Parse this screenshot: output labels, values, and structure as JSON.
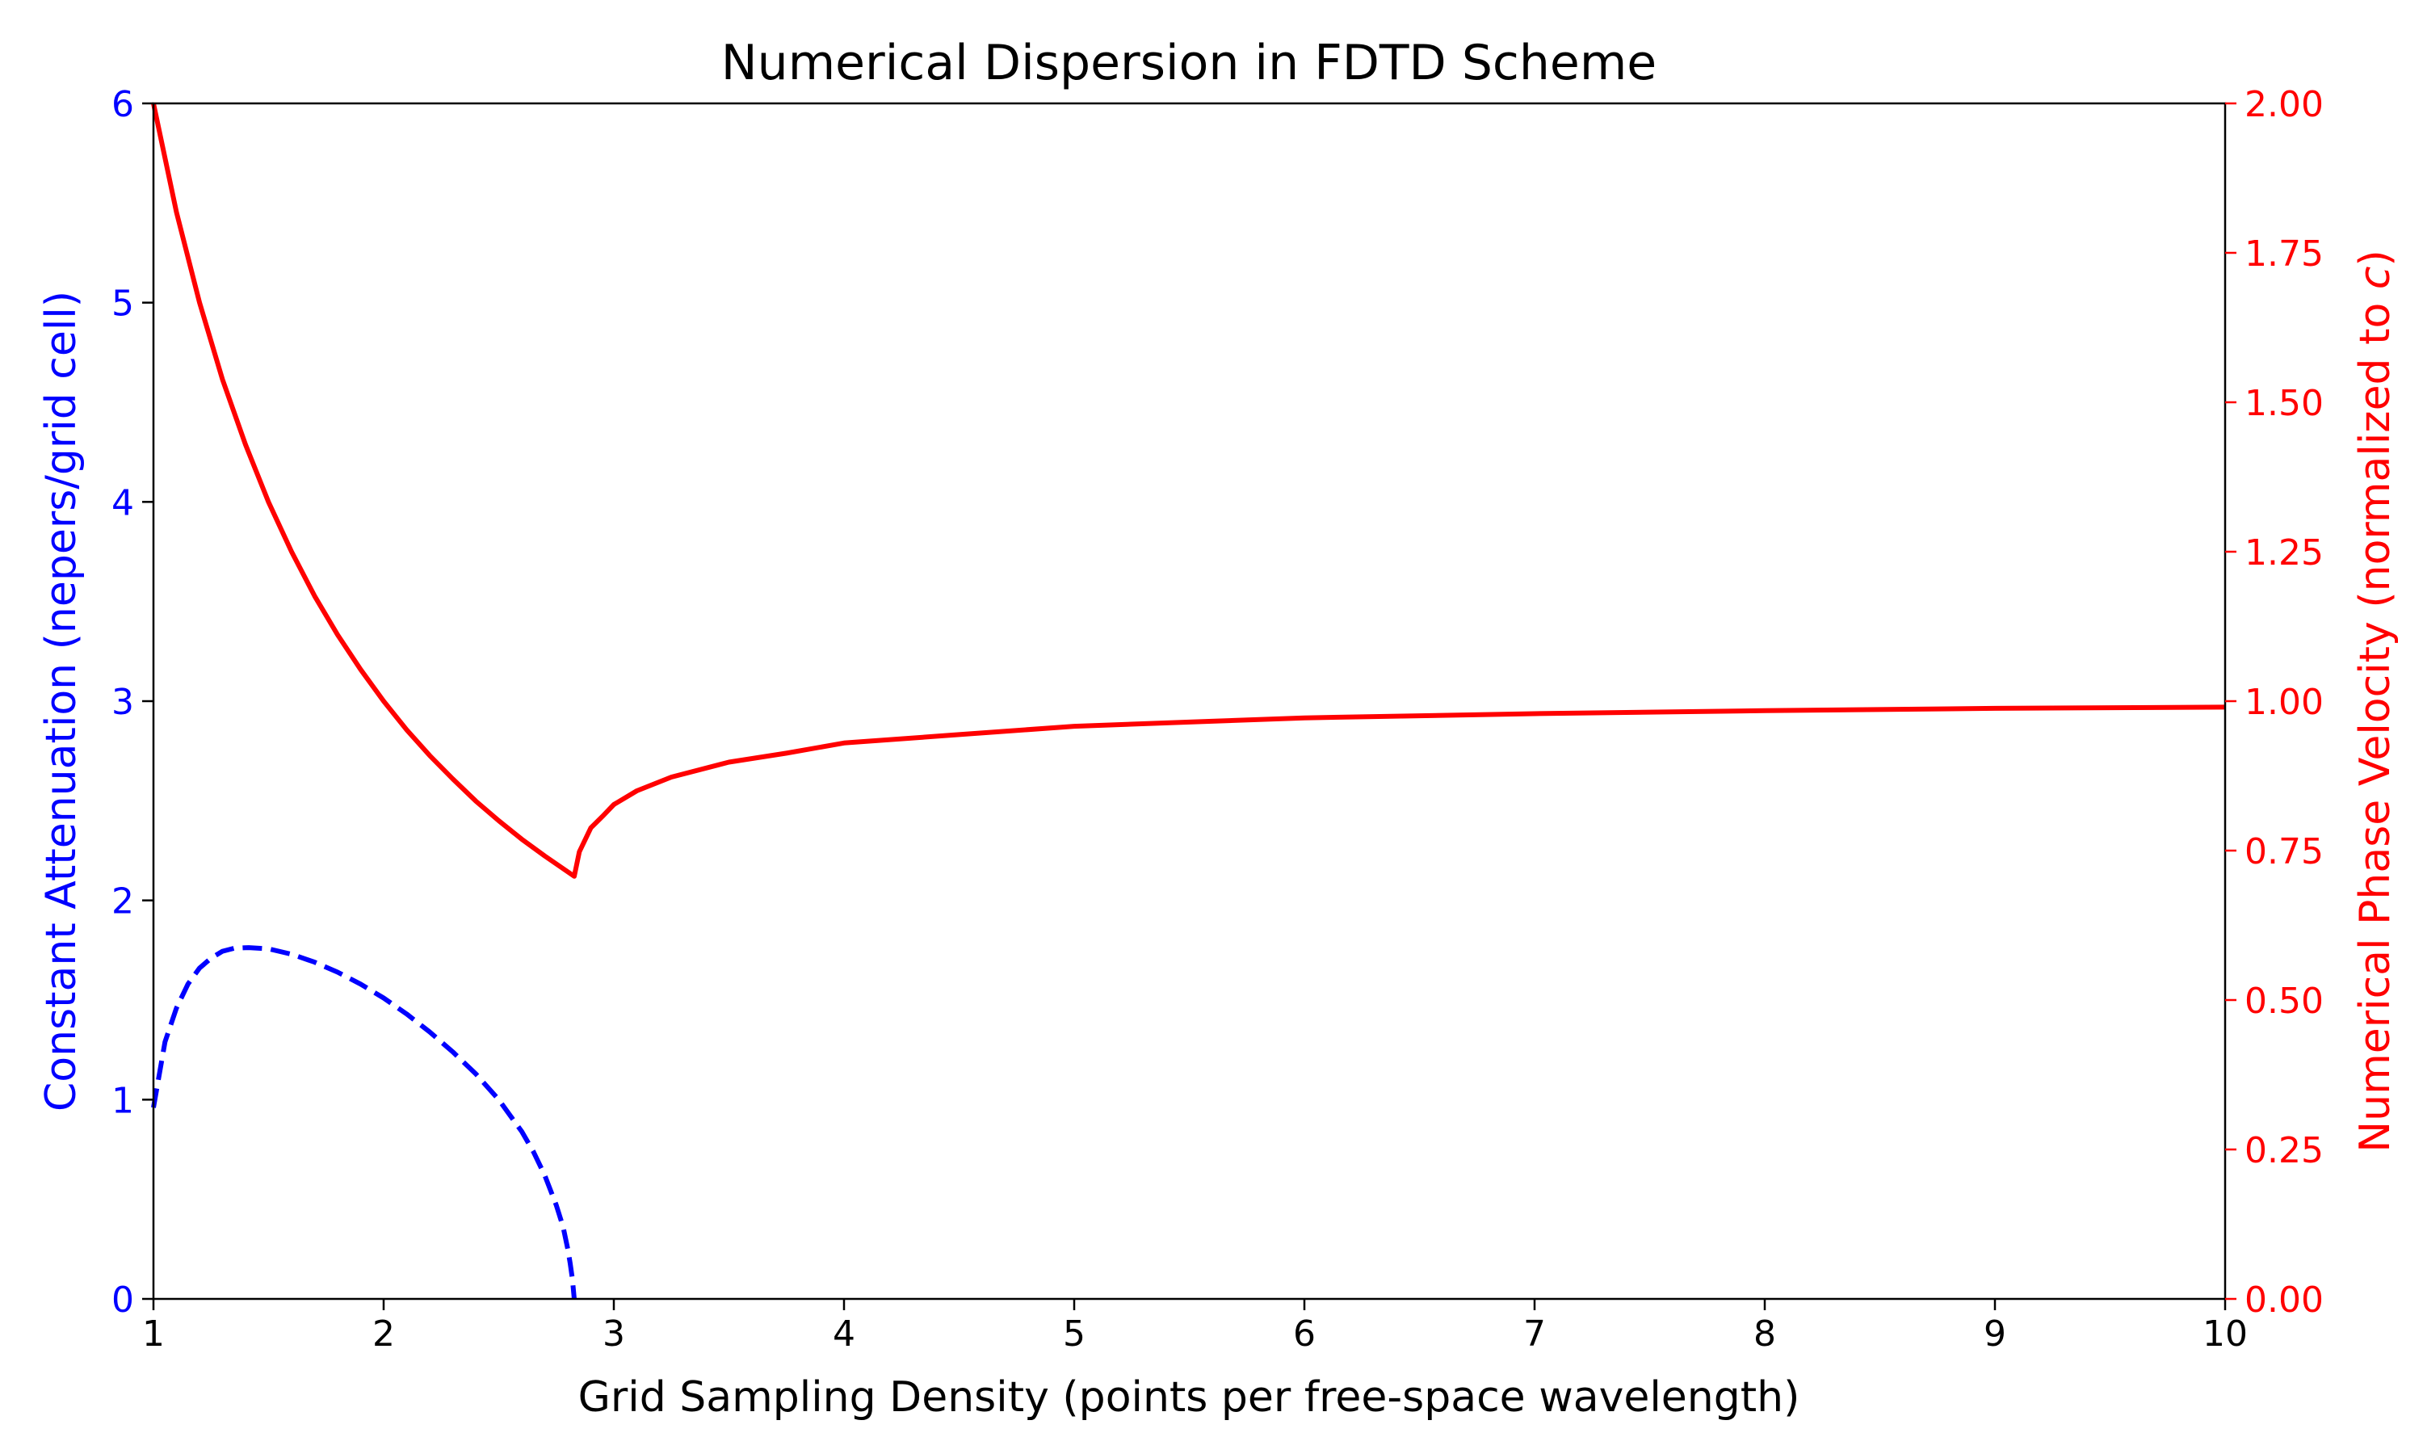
{
  "chart_data": {
    "type": "line",
    "title": "Numerical Dispersion in FDTD Scheme",
    "xlabel": "Grid Sampling Density (points per free-space wavelength)",
    "ylabel_left": "Constant Attenuation (nepers/grid cell)",
    "ylabel_right_prefix": "Numerical Phase Velocity (normalized to ",
    "ylabel_right_var": "c",
    "ylabel_right_suffix": ")",
    "xlim": [
      1,
      10
    ],
    "ylim_left": [
      0,
      6
    ],
    "ylim_right": [
      0,
      2
    ],
    "x_ticks": [
      1,
      2,
      3,
      4,
      5,
      6,
      7,
      8,
      9,
      10
    ],
    "x_tick_labels": [
      "1",
      "2",
      "3",
      "4",
      "5",
      "6",
      "7",
      "8",
      "9",
      "10"
    ],
    "y_left_ticks": [
      0,
      1,
      2,
      3,
      4,
      5,
      6
    ],
    "y_left_tick_labels": [
      "0",
      "1",
      "2",
      "3",
      "4",
      "5",
      "6"
    ],
    "y_right_ticks": [
      0,
      0.25,
      0.5,
      0.75,
      1.0,
      1.25,
      1.5,
      1.75,
      2.0
    ],
    "y_right_tick_labels": [
      "0.00",
      "0.25",
      "0.50",
      "0.75",
      "1.00",
      "1.25",
      "1.50",
      "1.75",
      "2.00"
    ],
    "grid": false,
    "series": [
      {
        "axis": "left",
        "style": "dashed",
        "color": "#0000ff",
        "x": [
          1.0,
          1.05,
          1.1,
          1.15,
          1.2,
          1.25,
          1.3,
          1.35,
          1.414,
          1.5,
          1.6,
          1.7,
          1.8,
          1.9,
          2.0,
          2.1,
          2.2,
          2.3,
          2.4,
          2.5,
          2.6,
          2.65,
          2.7,
          2.75,
          2.78,
          2.8,
          2.81,
          2.82,
          2.828
        ],
        "y": [
          0.96,
          1.29,
          1.46,
          1.58,
          1.66,
          1.71,
          1.745,
          1.76,
          1.763,
          1.757,
          1.73,
          1.69,
          1.64,
          1.58,
          1.51,
          1.43,
          1.34,
          1.24,
          1.13,
          1.0,
          0.84,
          0.74,
          0.62,
          0.47,
          0.36,
          0.25,
          0.18,
          0.1,
          0.0
        ]
      },
      {
        "axis": "right",
        "style": "solid",
        "color": "#ff0000",
        "x": [
          1.0,
          1.1,
          1.2,
          1.3,
          1.4,
          1.5,
          1.6,
          1.7,
          1.8,
          1.9,
          2.0,
          2.1,
          2.2,
          2.3,
          2.4,
          2.5,
          2.6,
          2.7,
          2.828,
          2.85,
          2.9,
          2.95,
          3.0,
          3.1,
          3.25,
          3.5,
          3.75,
          4.0,
          4.5,
          5.0,
          5.5,
          6.0,
          7.0,
          8.0,
          9.0,
          10.0
        ],
        "y": [
          2.0,
          1.818,
          1.667,
          1.538,
          1.429,
          1.333,
          1.25,
          1.176,
          1.111,
          1.053,
          1.0,
          0.952,
          0.909,
          0.87,
          0.833,
          0.8,
          0.769,
          0.741,
          0.707,
          0.748,
          0.788,
          0.807,
          0.827,
          0.85,
          0.873,
          0.898,
          0.913,
          0.93,
          0.944,
          0.958,
          0.965,
          0.972,
          0.979,
          0.984,
          0.988,
          0.99
        ]
      }
    ]
  }
}
